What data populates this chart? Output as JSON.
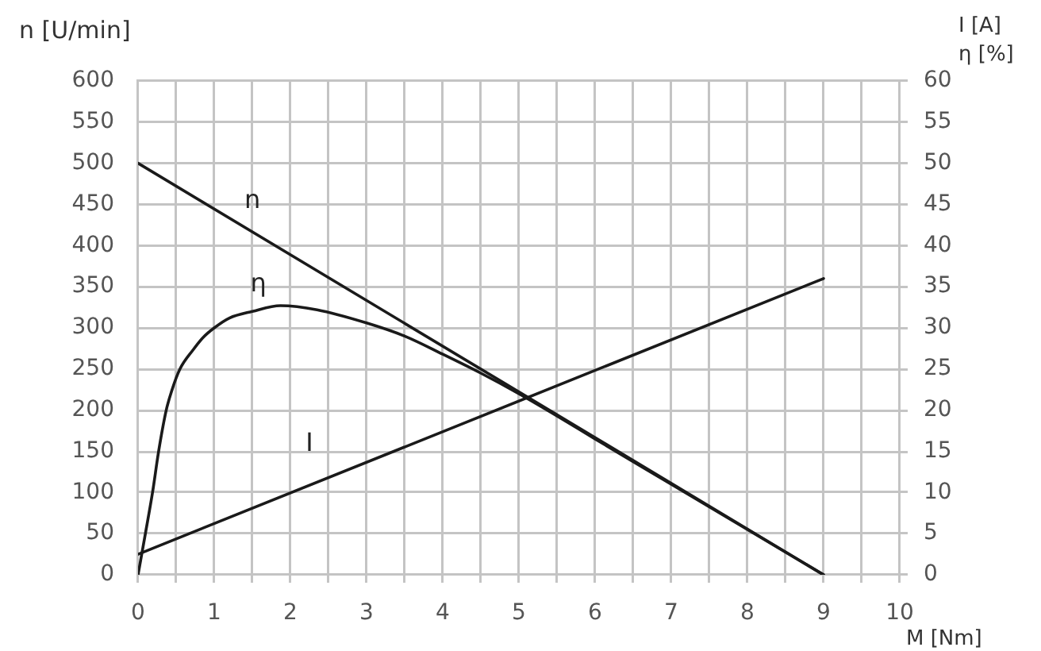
{
  "chart_data": {
    "type": "line",
    "xlabel": "M [Nm]",
    "ylabel": "n [U/min]",
    "y2label": "I [A]\nη [%]",
    "xlim": [
      0,
      10
    ],
    "xticks": [
      0,
      {
        "value": 0.5,
        "label": null
      },
      1,
      {
        "value": 1.5,
        "label": null
      },
      2,
      {
        "value": 2.5,
        "label": null
      },
      3,
      {
        "value": 3.5,
        "label": null
      },
      4,
      {
        "value": 4.5,
        "label": null
      },
      5,
      {
        "value": 5.5,
        "label": null
      },
      6,
      {
        "value": 6.5,
        "label": null
      },
      7,
      {
        "value": 7.5,
        "label": null
      },
      8,
      {
        "value": 8.5,
        "label": null
      },
      9,
      {
        "value": 9.5,
        "label": null
      },
      10
    ],
    "ylim": [
      0,
      600
    ],
    "yticks": [
      0,
      50,
      100,
      150,
      200,
      250,
      300,
      350,
      400,
      450,
      500,
      550,
      600
    ],
    "y2lim": [
      0,
      60
    ],
    "y2ticks": [
      0,
      5,
      10,
      15,
      20,
      25,
      30,
      35,
      40,
      45,
      50,
      55,
      60
    ],
    "grid": true,
    "series": [
      {
        "name": "n",
        "color": "#1a1a1a",
        "x": [
          0,
          9
        ],
        "values": [
          500,
          0
        ]
      },
      {
        "name": "η",
        "color": "#1a1a1a",
        "axis": "y2",
        "x": [
          0,
          0.1,
          0.19,
          0.27,
          0.37,
          0.44,
          0.55,
          0.72,
          0.85,
          1,
          1.2,
          1.5,
          1.87,
          2.35,
          3,
          3.5,
          4,
          4.5,
          5,
          5.5,
          6,
          7,
          8,
          9
        ],
        "values": [
          0,
          5.2,
          10,
          15,
          20,
          22.3,
          25,
          27.3,
          28.8,
          30,
          31.2,
          32,
          32.7,
          32.2,
          30.6,
          29,
          26.8,
          24.5,
          22,
          19.3,
          16.5,
          11,
          5.5,
          0
        ]
      },
      {
        "name": "I",
        "color": "#1a1a1a",
        "axis": "y2",
        "x": [
          0,
          9
        ],
        "values": [
          2.5,
          36
        ]
      }
    ]
  }
}
